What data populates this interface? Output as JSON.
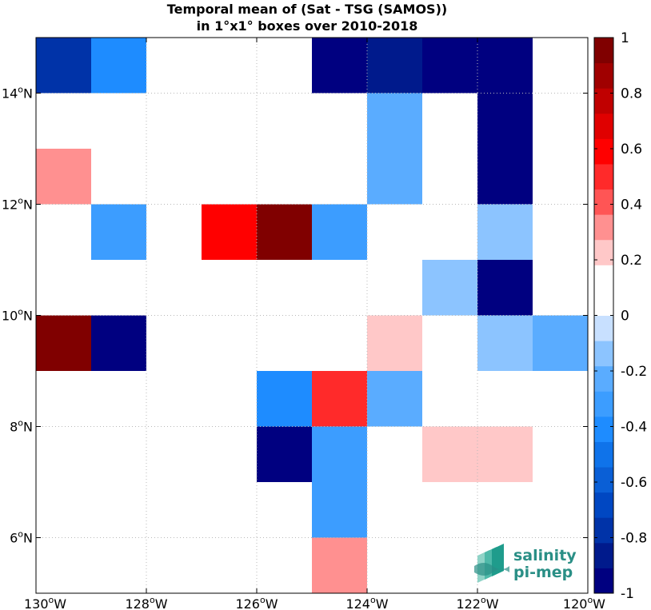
{
  "chart_data": {
    "type": "heatmap",
    "title": [
      "Temporal mean of (Sat - TSG (SAMOS))",
      "in 1°x1° boxes over 2010-2018"
    ],
    "x_range": [
      -130,
      -120
    ],
    "y_range": [
      5,
      15
    ],
    "grid": true,
    "x_ticks": [
      {
        "value": -130,
        "label": "130",
        "suffix": "W"
      },
      {
        "value": -128,
        "label": "128",
        "suffix": "W"
      },
      {
        "value": -126,
        "label": "126",
        "suffix": "W"
      },
      {
        "value": -124,
        "label": "124",
        "suffix": "W"
      },
      {
        "value": -122,
        "label": "122",
        "suffix": "W"
      },
      {
        "value": -120,
        "label": "120",
        "suffix": "W"
      }
    ],
    "y_ticks": [
      {
        "value": 6,
        "label": "6",
        "suffix": "N"
      },
      {
        "value": 8,
        "label": "8",
        "suffix": "N"
      },
      {
        "value": 10,
        "label": "10",
        "suffix": "N"
      },
      {
        "value": 12,
        "label": "12",
        "suffix": "N"
      },
      {
        "value": 14,
        "label": "14",
        "suffix": "N"
      }
    ],
    "cells": [
      {
        "lon": -130,
        "lat": 14,
        "value": -0.8
      },
      {
        "lon": -129,
        "lat": 14,
        "value": -0.4
      },
      {
        "lon": -125,
        "lat": 14,
        "value": -1.0
      },
      {
        "lon": -124,
        "lat": 14,
        "value": -0.85
      },
      {
        "lon": -123,
        "lat": 14,
        "value": -1.0
      },
      {
        "lon": -122,
        "lat": 14,
        "value": -1.0
      },
      {
        "lon": -124,
        "lat": 13,
        "value": -0.25
      },
      {
        "lon": -122,
        "lat": 13,
        "value": -1.0
      },
      {
        "lon": -130,
        "lat": 12,
        "value": 0.35
      },
      {
        "lon": -124,
        "lat": 12,
        "value": -0.25
      },
      {
        "lon": -122,
        "lat": 12,
        "value": -1.0
      },
      {
        "lon": -129,
        "lat": 11,
        "value": -0.35
      },
      {
        "lon": -127,
        "lat": 11,
        "value": 0.55
      },
      {
        "lon": -126,
        "lat": 11,
        "value": 0.95
      },
      {
        "lon": -125,
        "lat": 11,
        "value": -0.35
      },
      {
        "lon": -122,
        "lat": 11,
        "value": -0.15
      },
      {
        "lon": -124,
        "lat": 10,
        "value": 0.15
      },
      {
        "lon": -123,
        "lat": 10,
        "value": -0.15
      },
      {
        "lon": -122,
        "lat": 10,
        "value": -1.0
      },
      {
        "lon": -130,
        "lat": 9,
        "value": 0.95
      },
      {
        "lon": -129,
        "lat": 9,
        "value": -1.0
      },
      {
        "lon": -124,
        "lat": 9,
        "value": 0.25
      },
      {
        "lon": -122,
        "lat": 9,
        "value": -0.15
      },
      {
        "lon": -121,
        "lat": 9,
        "value": -0.25
      },
      {
        "lon": -126,
        "lat": 8,
        "value": -0.45
      },
      {
        "lon": -125,
        "lat": 8,
        "value": 0.5
      },
      {
        "lon": -124,
        "lat": 8,
        "value": -0.25
      },
      {
        "lon": -126,
        "lat": 7,
        "value": -1.0
      },
      {
        "lon": -125,
        "lat": 7,
        "value": -0.35
      },
      {
        "lon": -123,
        "lat": 7,
        "value": 0.25
      },
      {
        "lon": -122,
        "lat": 7,
        "value": 0.25
      },
      {
        "lon": -125,
        "lat": 6,
        "value": -0.35
      },
      {
        "lon": -125,
        "lat": 5,
        "value": 0.35
      }
    ],
    "colorbar": {
      "range": [
        -1,
        1
      ],
      "tick_values": [
        1,
        0.8,
        0.6,
        0.4,
        0.2,
        0,
        -0.2,
        -0.4,
        -0.6,
        -0.8,
        -1
      ],
      "tick_labels": [
        "1",
        "0.8",
        "0.6",
        "0.4",
        "0.2",
        "0",
        "-0.2",
        "-0.4",
        "-0.6",
        "-0.8",
        "-1"
      ],
      "colors": [
        "#000080",
        "#001a8c",
        "#0033a8",
        "#0047c2",
        "#0a5fd6",
        "#0f73ea",
        "#1e8cff",
        "#3c9dff",
        "#5aacff",
        "#8cc4ff",
        "#c8e0ff",
        "#ffffff",
        "#ffffff",
        "#ffc8c8",
        "#ff9090",
        "#ff5555",
        "#ff2a2a",
        "#ff0000",
        "#e00000",
        "#c00000",
        "#a00000",
        "#800000"
      ]
    }
  },
  "logo": {
    "line1": "salinity",
    "line2": "pi-mep"
  }
}
